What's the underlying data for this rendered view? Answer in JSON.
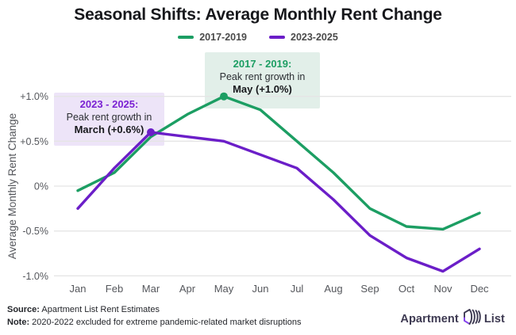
{
  "header": {
    "title": "Seasonal Shifts: Average Monthly Rent Change",
    "legend": [
      {
        "label": "2017-2019",
        "color": "#1C9E63"
      },
      {
        "label": "2023-2025",
        "color": "#6B1EC8"
      }
    ]
  },
  "chart_data": {
    "type": "line",
    "title": "Seasonal Shifts: Average Monthly Rent Change",
    "categories": [
      "Jan",
      "Feb",
      "Mar",
      "Apr",
      "May",
      "Jun",
      "Jul",
      "Aug",
      "Sep",
      "Oct",
      "Nov",
      "Dec"
    ],
    "series": [
      {
        "name": "2017-2019",
        "color": "#1C9E63",
        "values": [
          -0.05,
          0.15,
          0.55,
          0.8,
          1.0,
          0.85,
          0.5,
          0.15,
          -0.25,
          -0.45,
          -0.48,
          -0.3
        ],
        "peak": {
          "index": 4,
          "month": "May",
          "value": 1.0
        }
      },
      {
        "name": "2023-2025",
        "color": "#6B1EC8",
        "values": [
          -0.25,
          0.2,
          0.6,
          0.55,
          0.5,
          0.35,
          0.2,
          -0.15,
          -0.55,
          -0.8,
          -0.95,
          -0.7
        ],
        "peak": {
          "index": 2,
          "month": "March",
          "value": 0.6
        }
      }
    ],
    "xlabel": "",
    "ylabel": "Average Monthly Rent Change",
    "ylim": [
      -1.0,
      1.0
    ],
    "yticks": [
      {
        "value": 1.0,
        "label": "+1.0%"
      },
      {
        "value": 0.5,
        "label": "+0.5%"
      },
      {
        "value": 0.0,
        "label": "0%"
      },
      {
        "value": -0.5,
        "label": "-0.5%"
      },
      {
        "value": -1.0,
        "label": "-1.0%"
      }
    ],
    "grid": "horizontal",
    "legend_position": "top-center"
  },
  "annotations": {
    "green": {
      "title": "2017 - 2019:",
      "line2": "Peak rent growth in",
      "line3": "May (+1.0%)",
      "bg": "#E2EFE9",
      "title_color": "#1C9E63"
    },
    "purple": {
      "title": "2023 - 2025:",
      "line2": "Peak rent growth in",
      "line3": "March (+0.6%)",
      "bg": "#EDE4F8",
      "title_color": "#7B22D3"
    }
  },
  "footer": {
    "source_label": "Source:",
    "source_text": " Apartment List Rent Estimates",
    "note_label": "Note:",
    "note_text": " 2020-2022 excluded for extreme pandemic-related market disruptions",
    "logo": {
      "word1": "Apartment",
      "word2": "List"
    }
  },
  "colors": {
    "background": "#ffffff",
    "grid": "#E5E5E5",
    "axis_text": "#55575C",
    "title_text": "#17181C",
    "footer_text": "#24262B",
    "logo_text": "#3E3A52",
    "logo_accent": "#8B44F7"
  }
}
